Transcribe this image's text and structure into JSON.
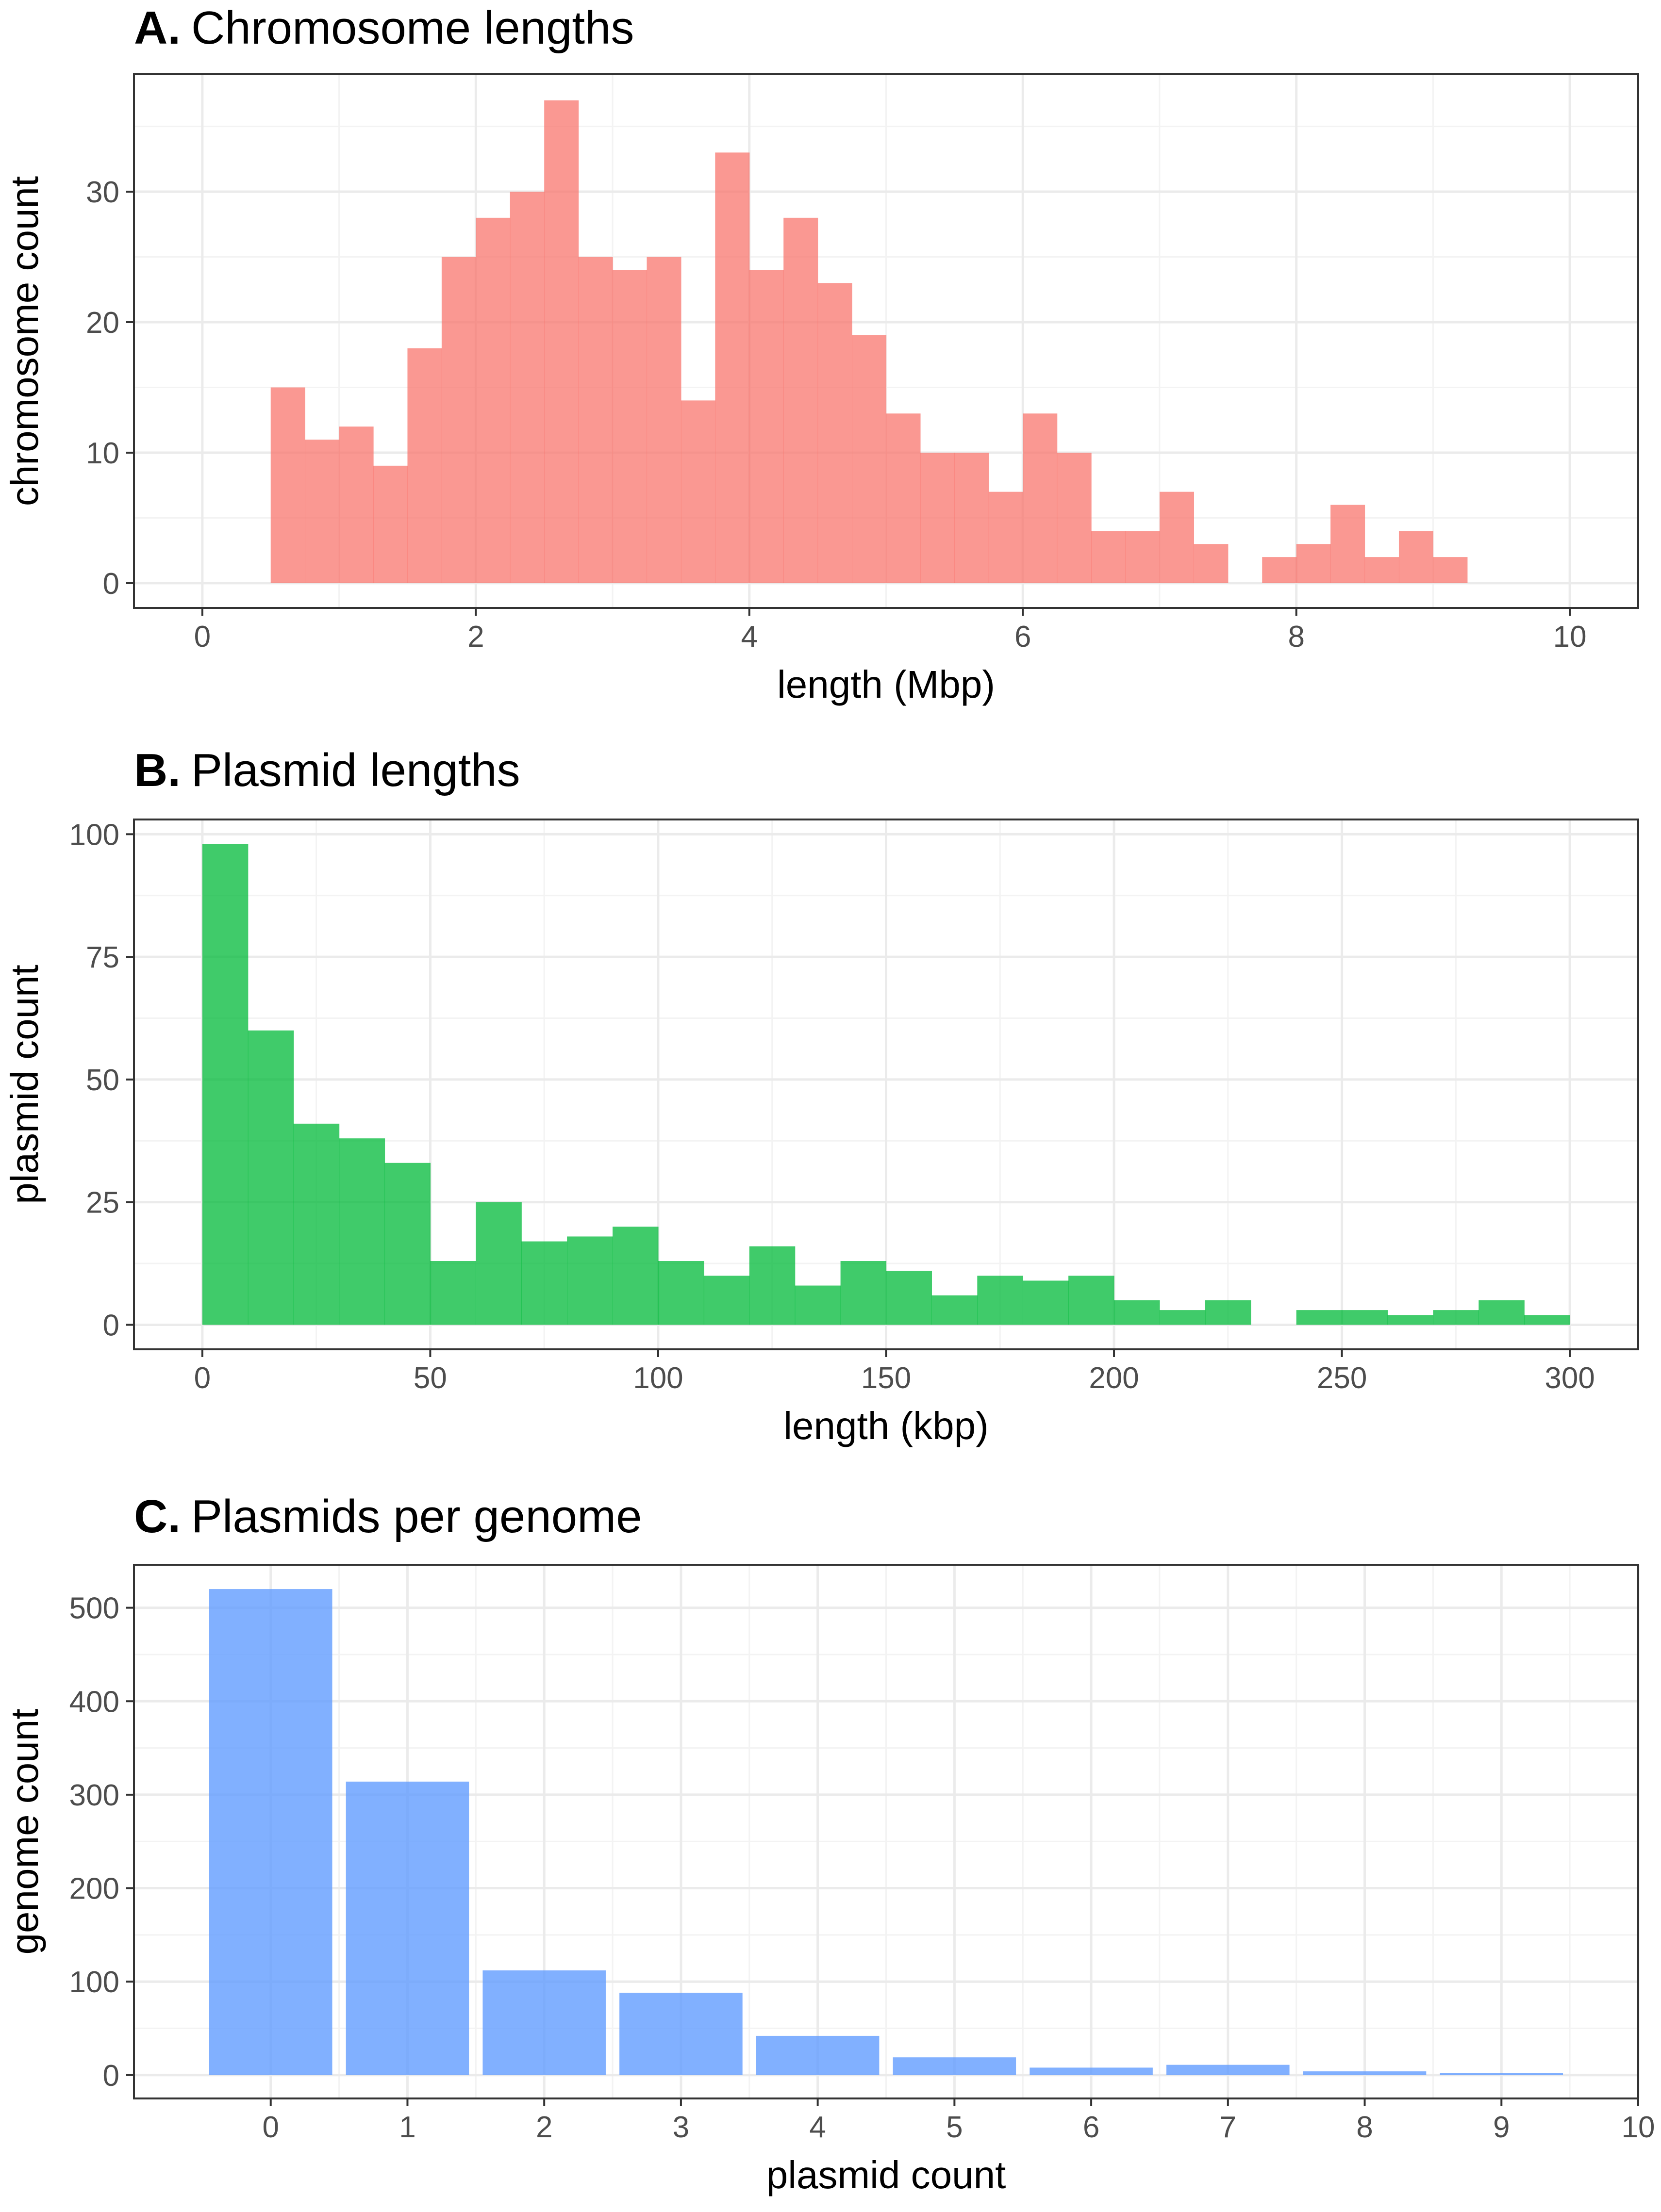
{
  "chart_data": [
    {
      "type": "bar",
      "panel": "A.",
      "title": "Chromosome lengths",
      "xlabel": "length (Mbp)",
      "ylabel": "chromosome count",
      "xlim": [
        -0.5,
        10.5
      ],
      "ylim": [
        -1.9,
        39
      ],
      "xticks": [
        0,
        2,
        4,
        6,
        8,
        10
      ],
      "yticks": [
        0,
        10,
        20,
        30
      ],
      "bin_width": 0.25,
      "bins_start": 0.5,
      "values": [
        15,
        11,
        12,
        9,
        18,
        25,
        28,
        30,
        37,
        25,
        24,
        25,
        14,
        33,
        24,
        28,
        23,
        19,
        13,
        10,
        10,
        7,
        13,
        10,
        4,
        4,
        7,
        3,
        0,
        2,
        3,
        6,
        2,
        4,
        2
      ],
      "color": "#f8766d",
      "grid": true
    },
    {
      "type": "bar",
      "panel": "B.",
      "title": "Plasmid lengths",
      "xlabel": "length (kbp)",
      "ylabel": "plasmid count",
      "xlim": [
        -15,
        315
      ],
      "ylim": [
        -5,
        103
      ],
      "xticks": [
        0,
        50,
        100,
        150,
        200,
        250,
        300
      ],
      "yticks": [
        0,
        25,
        50,
        75,
        100
      ],
      "bin_width": 10,
      "bins_start": 0,
      "values": [
        98,
        60,
        41,
        38,
        33,
        13,
        25,
        17,
        18,
        20,
        13,
        10,
        16,
        8,
        13,
        11,
        6,
        10,
        9,
        10,
        5,
        3,
        5,
        0,
        3,
        3,
        2,
        3,
        5,
        2
      ],
      "color": "#00ba38",
      "grid": true
    },
    {
      "type": "bar",
      "panel": "C.",
      "title": "Plasmids per genome",
      "xlabel": "plasmid count",
      "ylabel": "genome count",
      "xlim": [
        -1,
        10
      ],
      "ylim": [
        -25,
        546
      ],
      "xticks": [
        0,
        1,
        2,
        3,
        4,
        5,
        6,
        7,
        8,
        9,
        10
      ],
      "yticks": [
        0,
        100,
        200,
        300,
        400,
        500
      ],
      "categories": [
        0,
        1,
        2,
        3,
        4,
        5,
        6,
        7,
        8,
        9
      ],
      "values": [
        520,
        314,
        112,
        88,
        42,
        19,
        8,
        11,
        4,
        2
      ],
      "bar_width": 0.9,
      "color": "#619cff",
      "grid": true
    }
  ]
}
